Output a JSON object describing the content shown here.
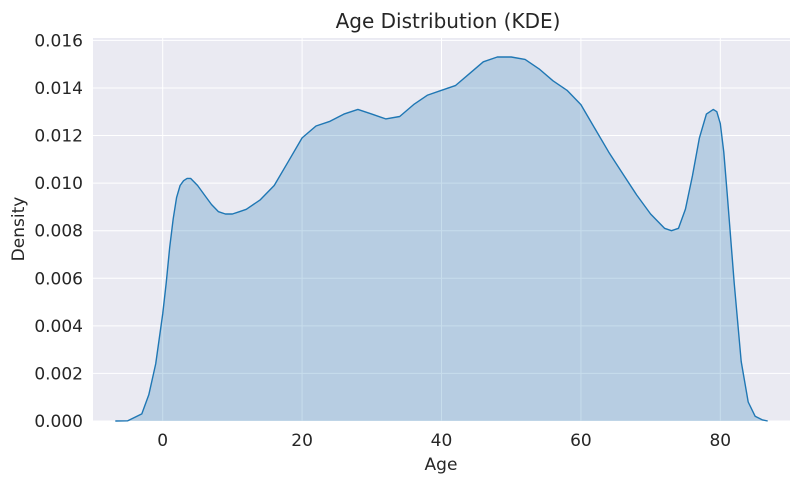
{
  "chart_data": {
    "type": "area",
    "title": "Age Distribution (KDE)",
    "xlabel": "Age",
    "ylabel": "Density",
    "xlim": [
      -10,
      90
    ],
    "ylim": [
      0,
      0.0161
    ],
    "xticks": [
      0,
      20,
      40,
      60,
      80
    ],
    "xtick_labels": [
      "0",
      "20",
      "40",
      "60",
      "80"
    ],
    "yticks": [
      0,
      0.002,
      0.004,
      0.006,
      0.008,
      0.01,
      0.012,
      0.014,
      0.016
    ],
    "ytick_labels": [
      "0.000",
      "0.002",
      "0.004",
      "0.006",
      "0.008",
      "0.010",
      "0.012",
      "0.014",
      "0.016"
    ],
    "grid": true,
    "series": [
      {
        "x": [
          -6.8,
          -5,
          -3,
          -2,
          -1,
          0,
          0.5,
          1,
          1.5,
          2,
          2.5,
          3,
          3.5,
          4,
          5,
          6,
          7,
          8,
          9,
          10,
          11,
          12,
          14,
          16,
          18,
          20,
          22,
          24,
          26,
          28,
          30,
          32,
          34,
          36,
          38,
          40,
          42,
          44,
          46,
          48,
          50,
          52,
          54,
          56,
          58,
          60,
          62,
          64,
          66,
          68,
          70,
          72,
          73,
          74,
          75,
          76,
          77,
          78,
          79,
          79.5,
          80,
          80.5,
          81,
          82,
          83,
          84,
          85,
          86,
          86.8
        ],
        "y": [
          0,
          1e-05,
          0.0003,
          0.0011,
          0.0024,
          0.0045,
          0.0058,
          0.0073,
          0.0085,
          0.0094,
          0.0099,
          0.0101,
          0.0102,
          0.0102,
          0.0099,
          0.0095,
          0.0091,
          0.0088,
          0.0087,
          0.0087,
          0.0088,
          0.0089,
          0.0093,
          0.0099,
          0.0109,
          0.0119,
          0.0124,
          0.0126,
          0.0129,
          0.0131,
          0.0129,
          0.0127,
          0.0128,
          0.0133,
          0.0137,
          0.0139,
          0.0141,
          0.0146,
          0.0151,
          0.0153,
          0.0153,
          0.0152,
          0.0148,
          0.0143,
          0.0139,
          0.0133,
          0.0123,
          0.0113,
          0.0104,
          0.0095,
          0.0087,
          0.0081,
          0.008,
          0.0081,
          0.0089,
          0.0103,
          0.0119,
          0.0129,
          0.0131,
          0.013,
          0.0125,
          0.0113,
          0.0095,
          0.0058,
          0.0025,
          0.0008,
          0.0002,
          5e-05,
          0
        ]
      }
    ],
    "colors": {
      "line": "#1f77b4",
      "fill": "#1f77b4",
      "plot_bg": "#eaeaf2",
      "grid": "#ffffff"
    }
  }
}
